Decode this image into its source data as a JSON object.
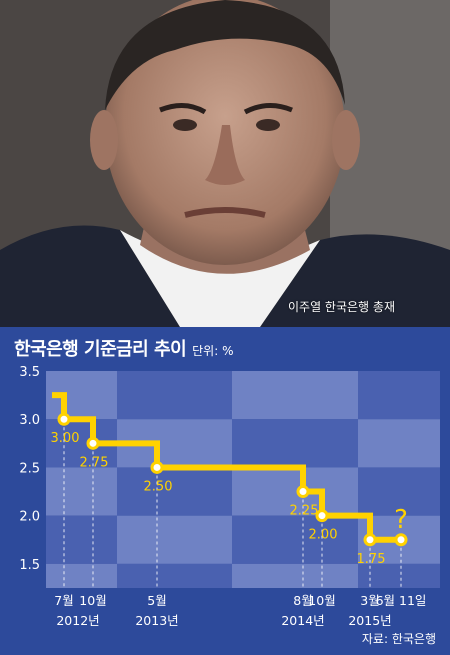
{
  "photo": {
    "caption": "이주열 한국은행 총재"
  },
  "chart_data": {
    "type": "line",
    "title": "한국은행 기준금리 추이",
    "unit": "단위: %",
    "ylim": [
      1.25,
      3.5
    ],
    "y_ticks": [
      "3.5",
      "3.0",
      "2.5",
      "2.0",
      "1.5"
    ],
    "x_ticks": [
      {
        "month": "7월",
        "year": "2012년"
      },
      {
        "month": "10월",
        "year": ""
      },
      {
        "month": "5월",
        "year": "2013년"
      },
      {
        "month": "8월",
        "year": "2014년"
      },
      {
        "month": "10월",
        "year": ""
      },
      {
        "month": "3월",
        "year": "2015년"
      },
      {
        "month": "6월 11일",
        "year": ""
      }
    ],
    "series": [
      {
        "points": [
          {
            "label": "3.00",
            "value": 3.0
          },
          {
            "label": "2.75",
            "value": 2.75
          },
          {
            "label": "2.50",
            "value": 2.5
          },
          {
            "label": "2.25",
            "value": 2.25
          },
          {
            "label": "2.00",
            "value": 2.0
          },
          {
            "label": "1.75",
            "value": 1.75
          },
          {
            "label": "",
            "value": 1.75
          }
        ],
        "start_value": 3.25,
        "end_mark": "?"
      }
    ],
    "grid": true,
    "colors": {
      "background": "#2d4a9b",
      "band_light": "#6f82c4",
      "band_dark": "#4a61b0",
      "line": "#ffd200",
      "text": "#ffffff"
    }
  },
  "source": "자료: 한국은행"
}
